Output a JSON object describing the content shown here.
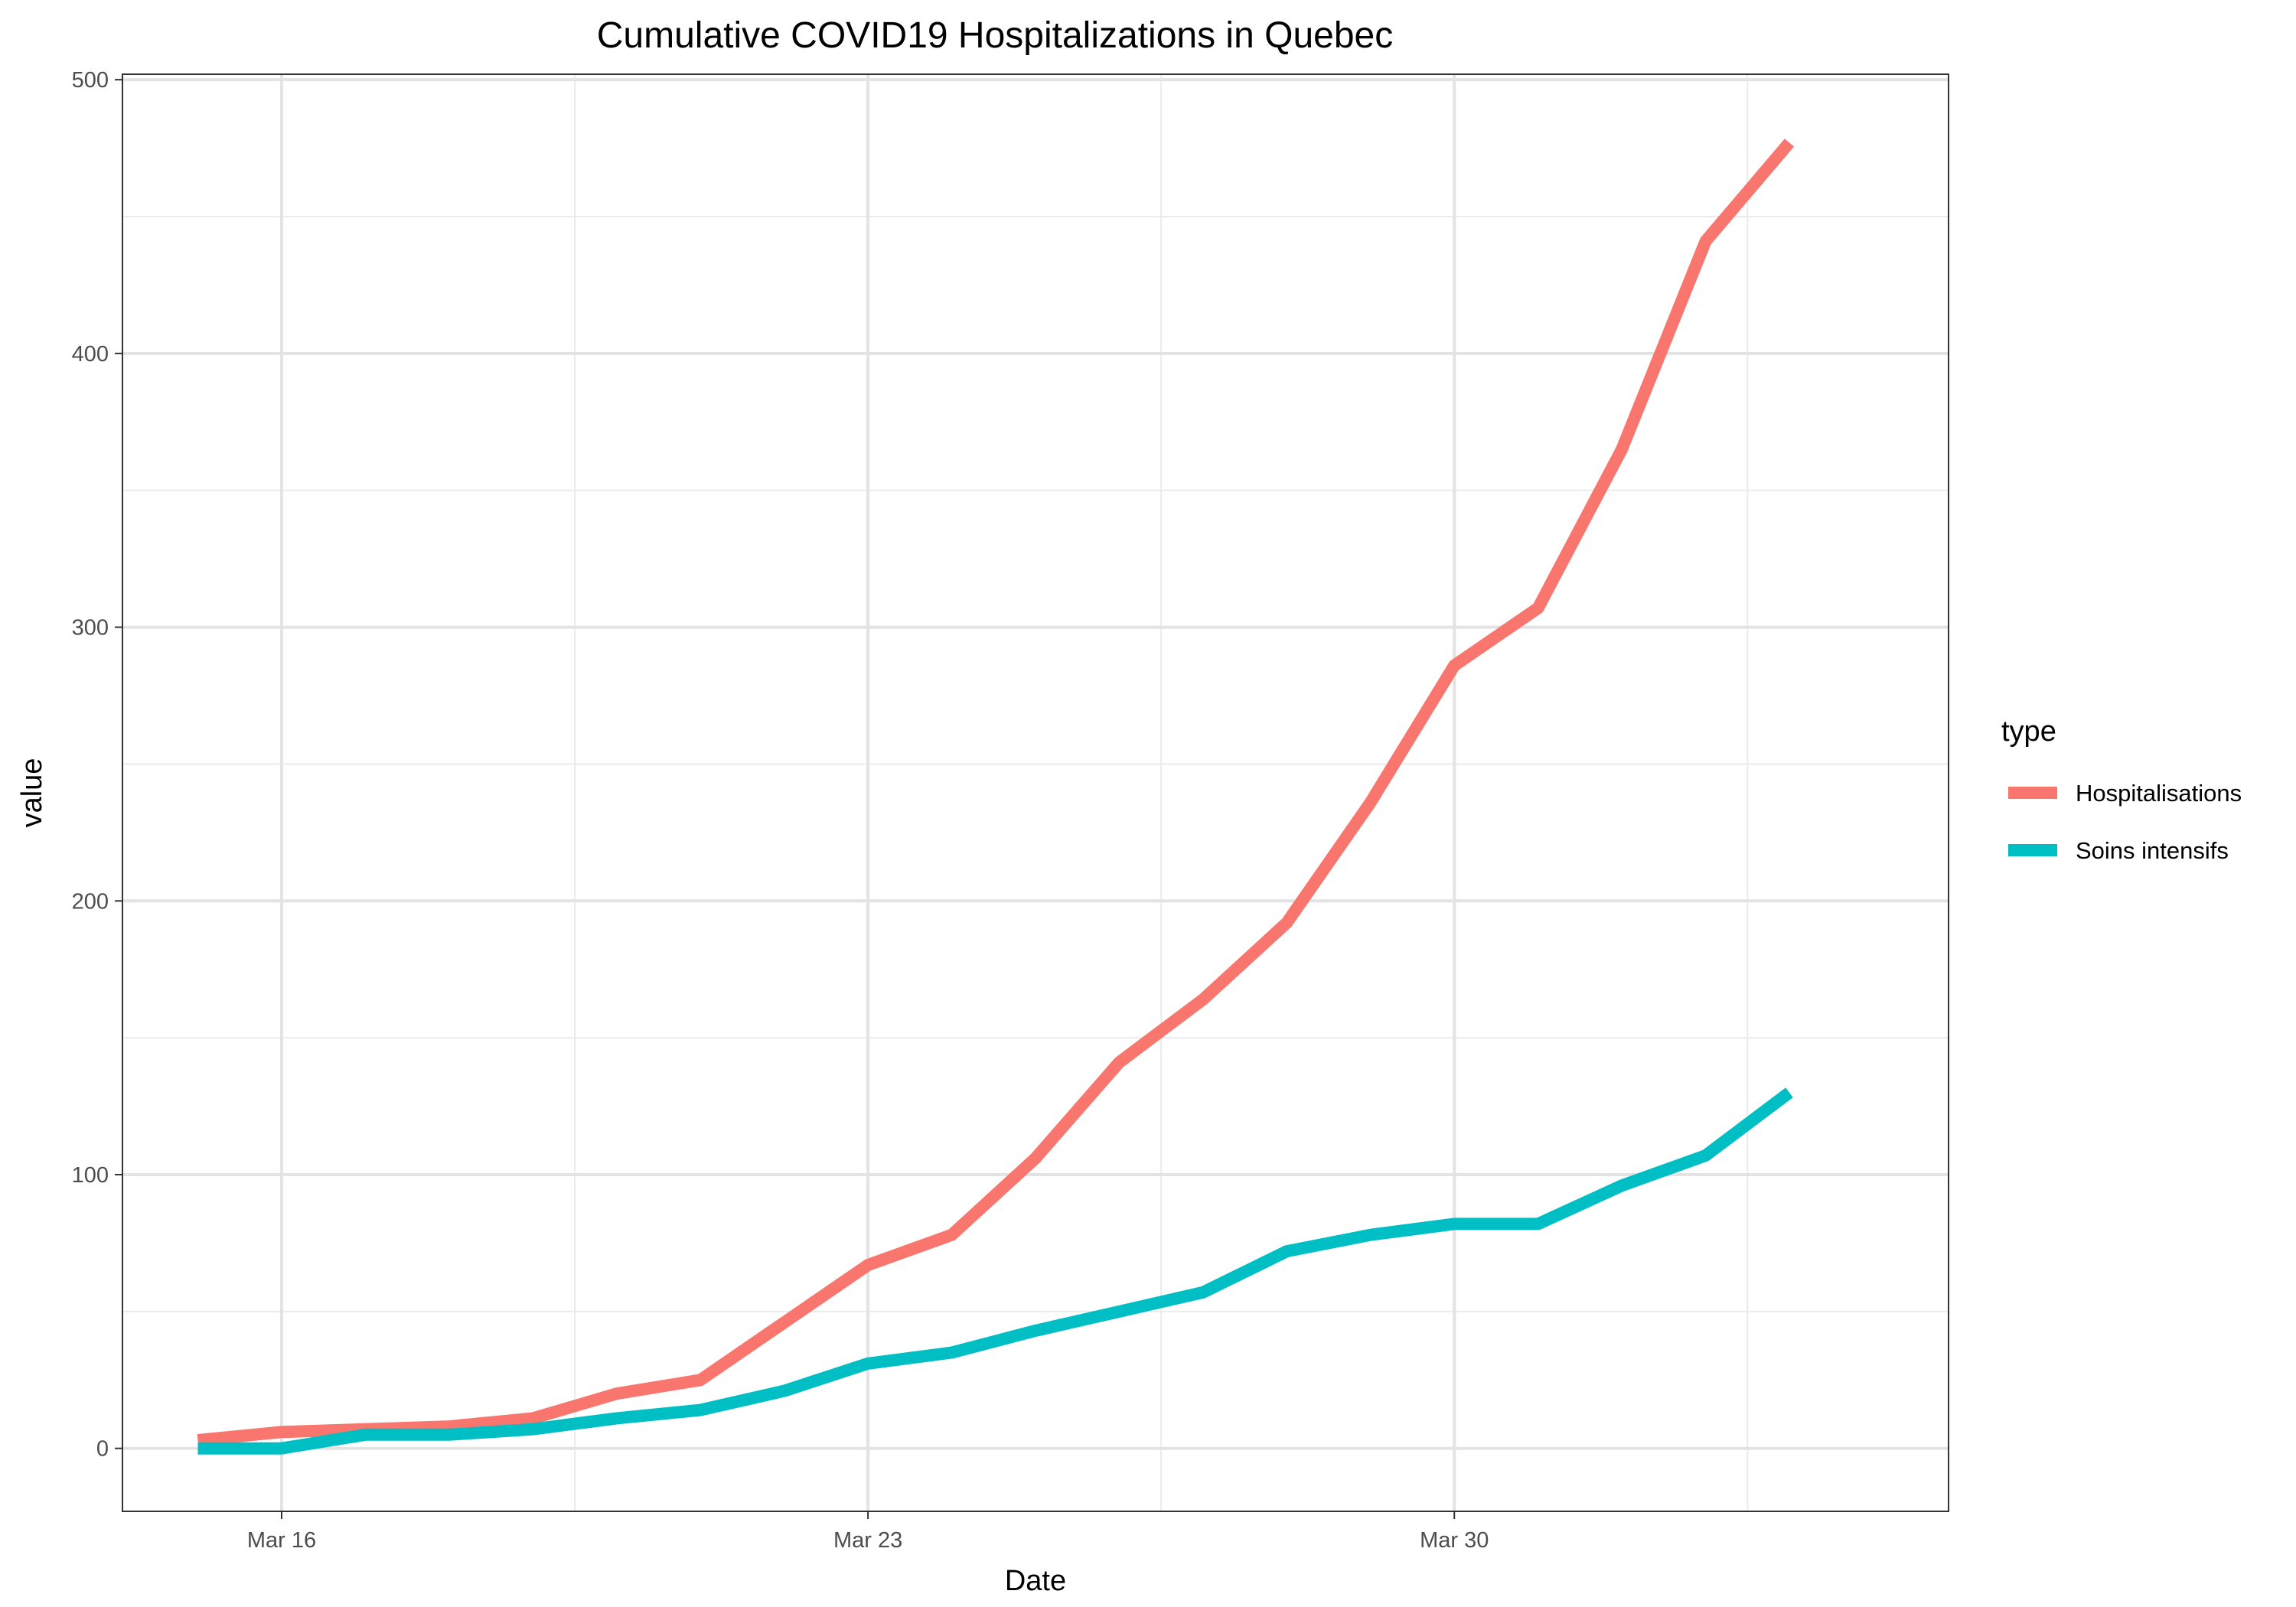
{
  "chart_data": {
    "type": "line",
    "title": "Cumulative COVID19 Hospitalizations in Quebec",
    "xlabel": "Date",
    "ylabel": "value",
    "x": [
      "2020-03-15",
      "2020-03-16",
      "2020-03-17",
      "2020-03-18",
      "2020-03-19",
      "2020-03-20",
      "2020-03-21",
      "2020-03-22",
      "2020-03-23",
      "2020-03-24",
      "2020-03-25",
      "2020-03-26",
      "2020-03-27",
      "2020-03-28",
      "2020-03-29",
      "2020-03-30",
      "2020-03-31",
      "2020-04-01",
      "2020-04-02",
      "2020-04-03"
    ],
    "x_ticks": [
      {
        "date": "2020-03-16",
        "label": "Mar 16"
      },
      {
        "date": "2020-03-23",
        "label": "Mar 23"
      },
      {
        "date": "2020-03-30",
        "label": "Mar 30"
      }
    ],
    "x_minor_grid": [
      "2020-03-19T12:00",
      "2020-03-26T12:00",
      "2020-04-02T12:00"
    ],
    "xlim": [
      "2020-03-14T02:24",
      "2020-04-04T21:36"
    ],
    "ylim": [
      -23,
      502
    ],
    "y_ticks": [
      0,
      100,
      200,
      300,
      400,
      500
    ],
    "y_minor_grid": [
      50,
      150,
      250,
      350,
      450
    ],
    "grid": true,
    "legend": {
      "title": "type",
      "position": "right"
    },
    "series": [
      {
        "name": "Hospitalisations",
        "color": "#F8766D",
        "values": [
          3,
          6,
          7,
          8,
          11,
          20,
          25,
          46,
          67,
          78,
          106,
          141,
          164,
          192,
          236,
          286,
          307,
          365,
          441,
          477
        ]
      },
      {
        "name": "Soins intensifs",
        "color": "#00BFC4",
        "values": [
          0,
          0,
          5,
          5,
          7,
          11,
          14,
          21,
          31,
          35,
          43,
          50,
          57,
          72,
          78,
          82,
          82,
          96,
          107,
          130
        ]
      }
    ]
  }
}
